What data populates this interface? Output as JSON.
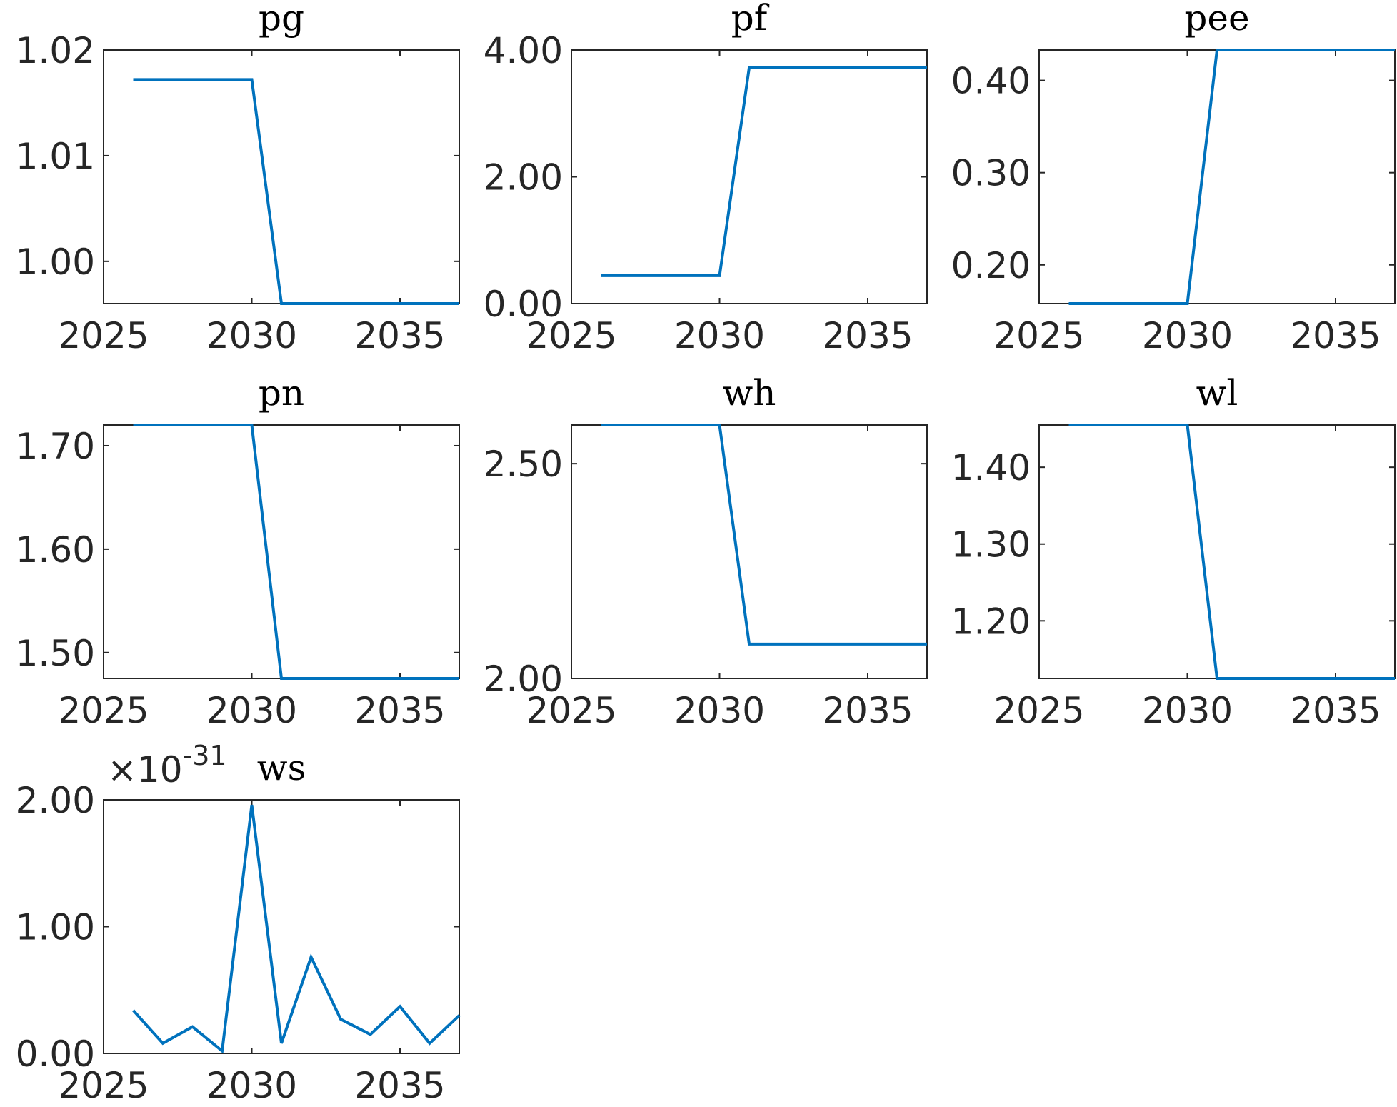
{
  "colors": {
    "line": "#0072BD",
    "axis": "#262626",
    "background": "#ffffff"
  },
  "chart_data": [
    {
      "type": "line",
      "title": "pg",
      "x": [
        2026,
        2027,
        2028,
        2029,
        2030,
        2031,
        2032,
        2033,
        2034,
        2035,
        2036,
        2037
      ],
      "series": [
        {
          "values": [
            1.0172,
            1.0172,
            1.0172,
            1.0172,
            1.0172,
            0.996,
            0.996,
            0.996,
            0.996,
            0.996,
            0.996,
            0.996
          ]
        }
      ],
      "xlim": [
        2025,
        2037
      ],
      "ylim": [
        0.996,
        1.02
      ],
      "xticks": [
        2025,
        2030,
        2035
      ],
      "xtick_labels": [
        "2025",
        "2030",
        "2035"
      ],
      "yticks": [
        1.0,
        1.01,
        1.02
      ],
      "ytick_labels": [
        "1.00",
        "1.01",
        "1.02"
      ],
      "grid": false
    },
    {
      "type": "line",
      "title": "pf",
      "x": [
        2026,
        2027,
        2028,
        2029,
        2030,
        2031,
        2032,
        2033,
        2034,
        2035,
        2036,
        2037
      ],
      "series": [
        {
          "values": [
            0.44,
            0.44,
            0.44,
            0.44,
            0.44,
            3.72,
            3.72,
            3.72,
            3.72,
            3.72,
            3.72,
            3.72
          ]
        }
      ],
      "xlim": [
        2025,
        2037
      ],
      "ylim": [
        0,
        4
      ],
      "xticks": [
        2025,
        2030,
        2035
      ],
      "xtick_labels": [
        "2025",
        "2030",
        "2035"
      ],
      "yticks": [
        0,
        2,
        4
      ],
      "ytick_labels": [
        "0.00",
        "2.00",
        "4.00"
      ],
      "grid": false
    },
    {
      "type": "line",
      "title": "pee",
      "x": [
        2026,
        2027,
        2028,
        2029,
        2030,
        2031,
        2032,
        2033,
        2034,
        2035,
        2036,
        2037
      ],
      "series": [
        {
          "values": [
            0.158,
            0.158,
            0.158,
            0.158,
            0.158,
            0.433,
            0.433,
            0.433,
            0.433,
            0.433,
            0.433,
            0.433
          ]
        }
      ],
      "xlim": [
        2025,
        2037
      ],
      "ylim": [
        0.158,
        0.433
      ],
      "xticks": [
        2025,
        2030,
        2035
      ],
      "xtick_labels": [
        "2025",
        "2030",
        "2035"
      ],
      "yticks": [
        0.2,
        0.3,
        0.4
      ],
      "ytick_labels": [
        "0.20",
        "0.30",
        "0.40"
      ],
      "grid": false
    },
    {
      "type": "line",
      "title": "pn",
      "x": [
        2026,
        2027,
        2028,
        2029,
        2030,
        2031,
        2032,
        2033,
        2034,
        2035,
        2036,
        2037
      ],
      "series": [
        {
          "values": [
            1.72,
            1.72,
            1.72,
            1.72,
            1.72,
            1.475,
            1.475,
            1.475,
            1.475,
            1.475,
            1.475,
            1.475
          ]
        }
      ],
      "xlim": [
        2025,
        2037
      ],
      "ylim": [
        1.475,
        1.72
      ],
      "xticks": [
        2025,
        2030,
        2035
      ],
      "xtick_labels": [
        "2025",
        "2030",
        "2035"
      ],
      "yticks": [
        1.5,
        1.6,
        1.7
      ],
      "ytick_labels": [
        "1.50",
        "1.60",
        "1.70"
      ],
      "grid": false
    },
    {
      "type": "line",
      "title": "wh",
      "x": [
        2026,
        2027,
        2028,
        2029,
        2030,
        2031,
        2032,
        2033,
        2034,
        2035,
        2036,
        2037
      ],
      "series": [
        {
          "values": [
            2.59,
            2.59,
            2.59,
            2.59,
            2.59,
            2.08,
            2.08,
            2.08,
            2.08,
            2.08,
            2.08,
            2.08
          ]
        }
      ],
      "xlim": [
        2025,
        2037
      ],
      "ylim": [
        2.0,
        2.59
      ],
      "xticks": [
        2025,
        2030,
        2035
      ],
      "xtick_labels": [
        "2025",
        "2030",
        "2035"
      ],
      "yticks": [
        2.0,
        2.5
      ],
      "ytick_labels": [
        "2.00",
        "2.50"
      ],
      "grid": false
    },
    {
      "type": "line",
      "title": "wl",
      "x": [
        2026,
        2027,
        2028,
        2029,
        2030,
        2031,
        2032,
        2033,
        2034,
        2035,
        2036,
        2037
      ],
      "series": [
        {
          "values": [
            1.455,
            1.455,
            1.455,
            1.455,
            1.455,
            1.125,
            1.125,
            1.125,
            1.125,
            1.125,
            1.125,
            1.125
          ]
        }
      ],
      "xlim": [
        2025,
        2037
      ],
      "ylim": [
        1.125,
        1.455
      ],
      "xticks": [
        2025,
        2030,
        2035
      ],
      "xtick_labels": [
        "2025",
        "2030",
        "2035"
      ],
      "yticks": [
        1.2,
        1.3,
        1.4
      ],
      "ytick_labels": [
        "1.20",
        "1.30",
        "1.40"
      ],
      "grid": false
    },
    {
      "type": "line",
      "title": "ws",
      "x": [
        2026,
        2027,
        2028,
        2029,
        2030,
        2031,
        2032,
        2033,
        2034,
        2035,
        2036,
        2037
      ],
      "series": [
        {
          "values": [
            0.34,
            0.08,
            0.21,
            0.02,
            1.96,
            0.08,
            0.76,
            0.27,
            0.15,
            0.37,
            0.08,
            0.3
          ]
        }
      ],
      "xlim": [
        2025,
        2037
      ],
      "ylim": [
        0,
        2
      ],
      "xticks": [
        2025,
        2030,
        2035
      ],
      "xtick_labels": [
        "2025",
        "2030",
        "2035"
      ],
      "yticks": [
        0,
        1,
        2
      ],
      "ytick_labels": [
        "0.00",
        "1.00",
        "2.00"
      ],
      "exponent_prefix": "×10",
      "exponent_power": "-31",
      "grid": false
    }
  ]
}
